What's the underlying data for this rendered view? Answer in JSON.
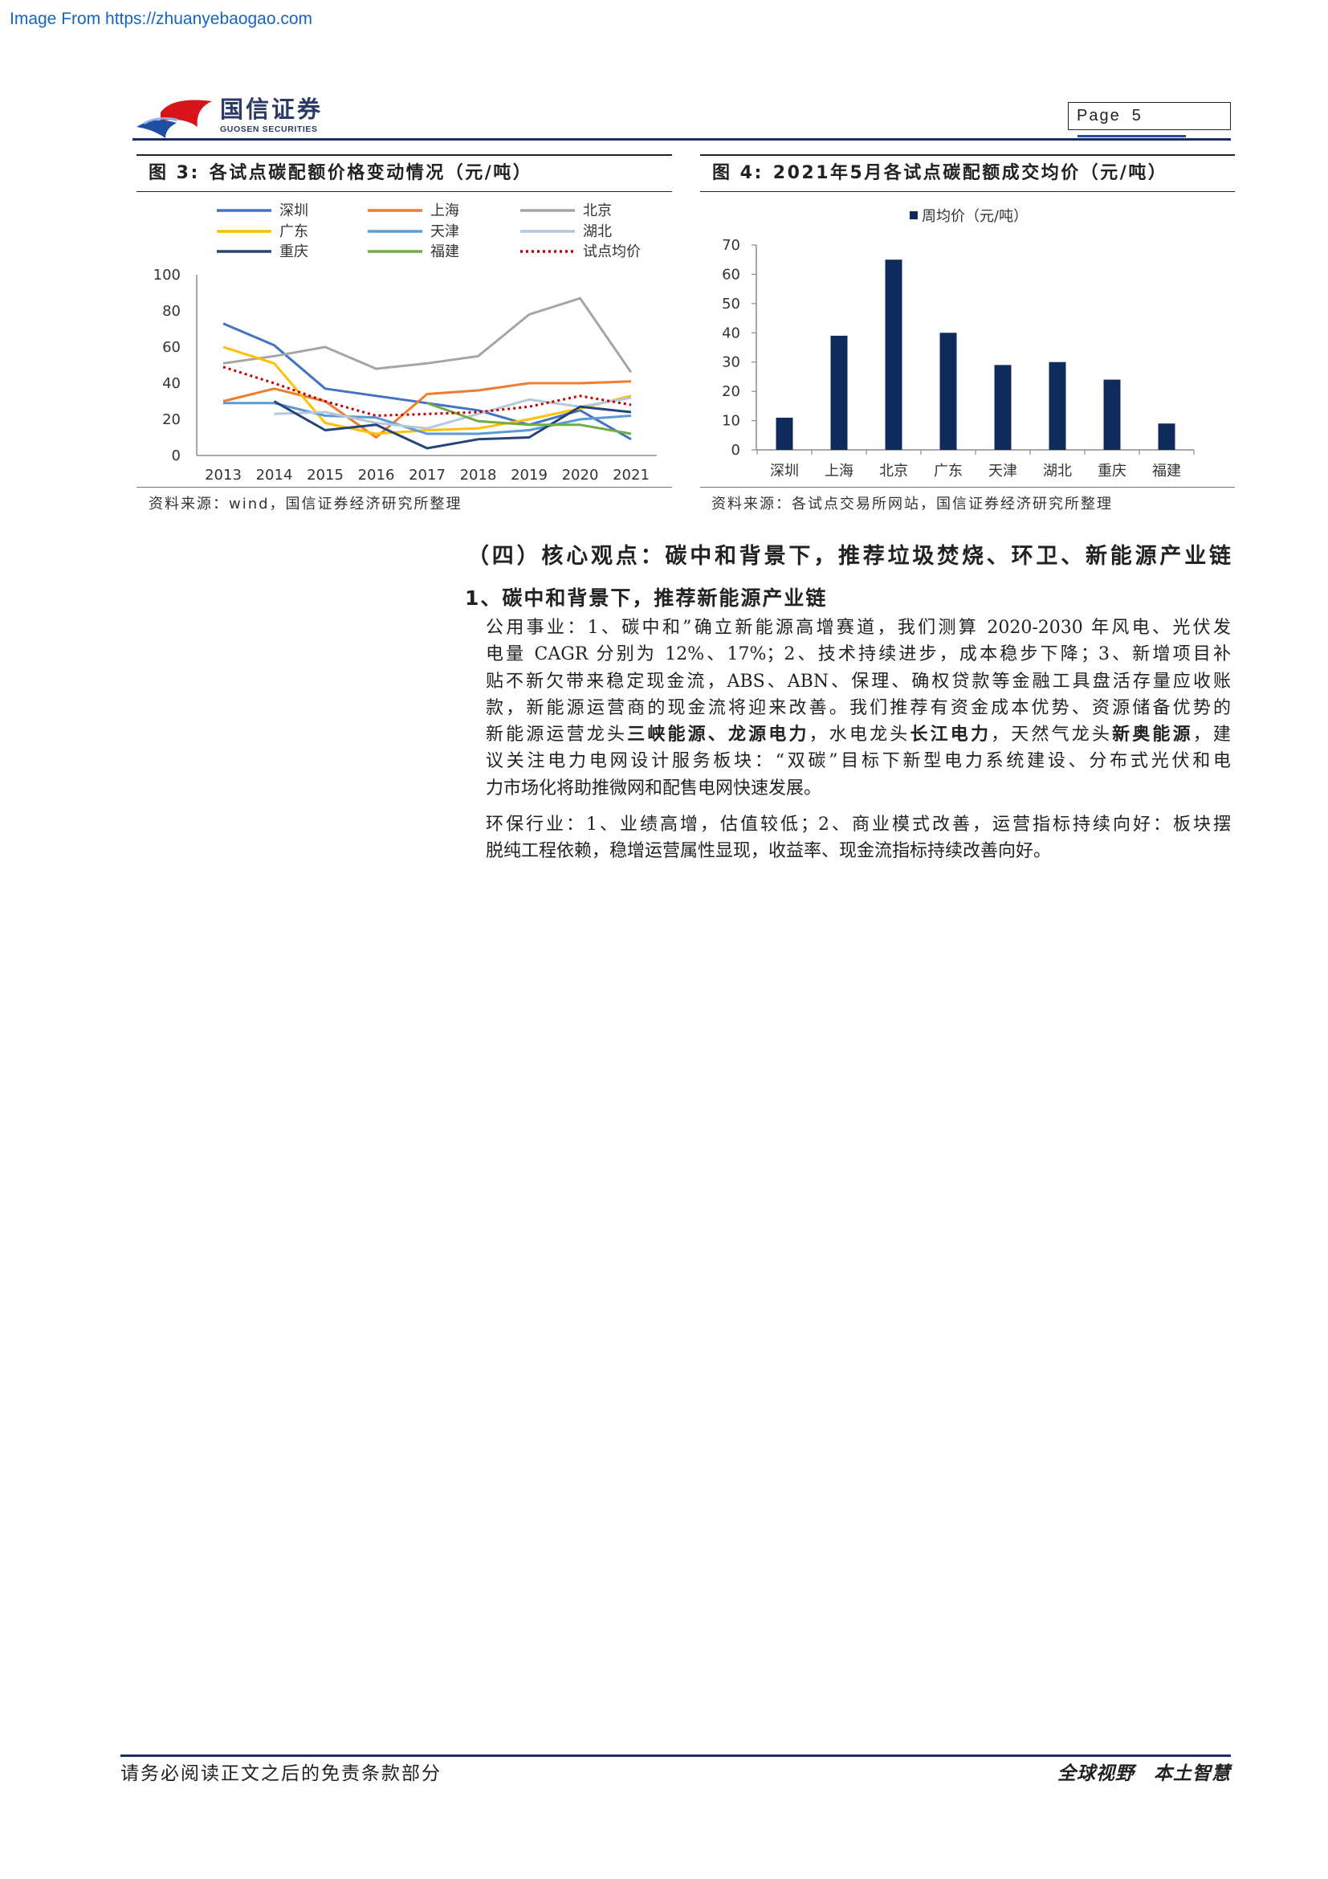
{
  "watermark": "Image From https://zhuanyebaogao.com",
  "header": {
    "logo_cn": "国信证券",
    "logo_en": "GUOSEN SECURITIES",
    "page_label": "Page",
    "page_number": "5",
    "brand_colors": {
      "navy": "#1c2d63",
      "red": "#d7141a",
      "blue": "#1f4fa0"
    }
  },
  "section": {
    "heading": "（四）核心观点：碳中和背景下，推荐垃圾焚烧、环卫、新能源产业链",
    "subheading": "1、碳中和背景下，推荐新能源产业链",
    "paragraph1": {
      "lines": [
        "公用事业：1、碳中和”确立新能源高增赛道，我们测算 2020-2030 年风电、光伏发",
        "电量 CAGR 分别为 12%、17%；2、技术持续进步，成本稳步下降；3、新增项目补",
        "贴不新欠带来稳定现金流，ABS、ABN、保理、确权贷款等金融工具盘活存量应收账",
        "款，新能源运营商的现金流将迎来改善。我们推荐有资金成本优势、资源储备优势的",
        [
          "新能源运营龙头",
          "三峡能源、龙源电力",
          "，水电龙头",
          "长江电力",
          "，天然气龙头",
          "新奥能源",
          "，建"
        ],
        "议关注电力电网设计服务板块：“双碳”目标下新型电力系统建设、分布式光伏和电",
        "力市场化将助推微网和配售电网快速发展。"
      ]
    },
    "paragraph2": {
      "lines": [
        "环保行业：1、业绩高增，估值较低；2、商业模式改善，运营指标持续向好：板块摆",
        "脱纯工程依赖，稳增运营属性显现，收益率、现金流指标持续改善向好。"
      ]
    }
  },
  "footer": {
    "disclaimer": "请务必阅读正文之后的免责条款部分",
    "slogan_left": "全球视野",
    "slogan_right": "本土智慧"
  },
  "chart_data": [
    {
      "type": "line",
      "label": "图 3:",
      "title": "各试点碳配额价格变动情况（元/吨）",
      "source": "资料来源：wind，国信证券经济研究所整理",
      "x": [
        2013,
        2014,
        2015,
        2016,
        2017,
        2018,
        2019,
        2020,
        2021
      ],
      "ylim": [
        0,
        100
      ],
      "yticks": [
        0,
        20,
        40,
        60,
        80,
        100
      ],
      "grid": false,
      "legend": "top",
      "series": [
        {
          "name": "深圳",
          "color": "#4472c4",
          "style": "solid",
          "values": [
            73,
            61,
            37,
            33,
            29,
            25,
            17,
            25,
            9
          ]
        },
        {
          "name": "上海",
          "color": "#ed7d31",
          "style": "solid",
          "values": [
            30,
            37,
            30,
            10,
            34,
            36,
            40,
            40,
            41
          ]
        },
        {
          "name": "北京",
          "color": "#a5a5a5",
          "style": "solid",
          "values": [
            51,
            55,
            60,
            48,
            51,
            55,
            78,
            87,
            46
          ]
        },
        {
          "name": "广东",
          "color": "#ffc000",
          "style": "solid",
          "values": [
            60,
            51,
            18,
            12,
            14,
            15,
            20,
            26,
            33
          ]
        },
        {
          "name": "天津",
          "color": "#5b9bd5",
          "style": "solid",
          "values": [
            29,
            29,
            22,
            21,
            12,
            12,
            14,
            20,
            22
          ]
        },
        {
          "name": "湖北",
          "color": "#b7c7da",
          "style": "solid",
          "values": [
            null,
            23,
            24,
            18,
            15,
            23,
            31,
            27,
            32
          ]
        },
        {
          "name": "重庆",
          "color": "#264478",
          "style": "solid",
          "values": [
            null,
            30,
            14,
            17,
            4,
            9,
            10,
            27,
            24
          ]
        },
        {
          "name": "福建",
          "color": "#70ad47",
          "style": "solid",
          "values": [
            null,
            null,
            null,
            null,
            29,
            19,
            17,
            17,
            12
          ]
        },
        {
          "name": "试点均价",
          "color": "#c00000",
          "style": "dotted",
          "values": [
            49,
            40,
            30,
            22,
            23,
            24,
            27,
            33,
            28
          ]
        }
      ]
    },
    {
      "type": "bar",
      "label": "图 4:",
      "title": "2021年5月各试点碳配额成交均价（元/吨）",
      "source": "资料来源：各试点交易所网站，国信证券经济研究所整理",
      "categories": [
        "深圳",
        "上海",
        "北京",
        "广东",
        "天津",
        "湖北",
        "重庆",
        "福建"
      ],
      "ylim": [
        0,
        70
      ],
      "yticks": [
        0,
        10,
        20,
        30,
        40,
        50,
        60,
        70
      ],
      "grid": false,
      "legend": "top",
      "series": [
        {
          "name": "周均价（元/吨）",
          "color": "#0f2b5b",
          "values": [
            11,
            39,
            65,
            40,
            29,
            30,
            24,
            9
          ]
        }
      ]
    }
  ]
}
